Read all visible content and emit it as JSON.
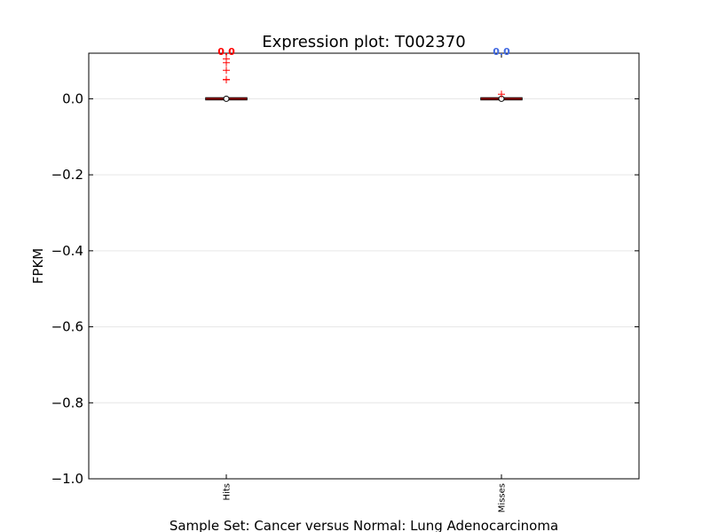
{
  "chart_data": {
    "type": "box",
    "title": "Expression plot: T002370",
    "xlabel": "Sample Set: Cancer versus Normal: Lung Adenocarcinoma",
    "ylabel": "FPKM",
    "ylim": [
      -1.0,
      0.12
    ],
    "yticks": [
      0.0,
      -0.2,
      -0.4,
      -0.6,
      -0.8,
      -1.0
    ],
    "ytick_labels": [
      "0.0",
      "−0.2",
      "−0.4",
      "−0.6",
      "−0.8",
      "−1.0"
    ],
    "grid": true,
    "categories": [
      "Hits",
      "Misses"
    ],
    "median_labels": [
      "0.0",
      "0.0"
    ],
    "colors": {
      "hits": "#ff0000",
      "misses": "#4169e1",
      "box": "#000000",
      "median": "#8b0000",
      "outlier": "#ff0000",
      "grid": "#e6e6e6"
    },
    "boxes": [
      {
        "category": "Hits",
        "median": 0.0,
        "q1": 0.0,
        "q3": 0.0,
        "whisker_low": 0.0,
        "whisker_high": 0.0,
        "mean": 0.0,
        "outliers": [
          0.05,
          0.051,
          0.075,
          0.095,
          0.105
        ]
      },
      {
        "category": "Misses",
        "median": 0.0,
        "q1": 0.0,
        "q3": 0.0,
        "whisker_low": 0.0,
        "whisker_high": 0.0,
        "mean": 0.0,
        "outliers": [
          0.012
        ]
      }
    ]
  }
}
